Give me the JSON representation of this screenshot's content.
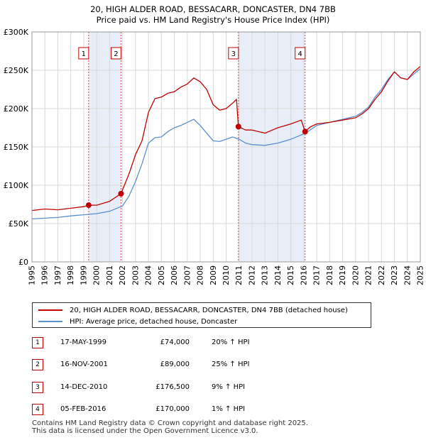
{
  "title_line1": "20, HIGH ALDER ROAD, BESSACARR, DONCASTER, DN4 7BB",
  "title_line2": "Price paid vs. HM Land Registry's House Price Index (HPI)",
  "legend": {
    "property_label": "20, HIGH ALDER ROAD, BESSACARR, DONCASTER, DN4 7BB (detached house)",
    "hpi_label": "HPI: Average price, detached house, Doncaster"
  },
  "transactions": [
    {
      "num": "1",
      "date": "17-MAY-1999",
      "price": "£74,000",
      "hpi_change": "20% ↑ HPI"
    },
    {
      "num": "2",
      "date": "16-NOV-2001",
      "price": "£89,000",
      "hpi_change": "25% ↑ HPI"
    },
    {
      "num": "3",
      "date": "14-DEC-2010",
      "price": "£176,500",
      "hpi_change": "9% ↑ HPI"
    },
    {
      "num": "4",
      "date": "05-FEB-2016",
      "price": "£170,000",
      "hpi_change": "1% ↑ HPI"
    }
  ],
  "footer": {
    "line1": "Contains HM Land Registry data © Crown copyright and database right 2025.",
    "line2": "This data is licensed under the Open Government Licence v3.0."
  },
  "colors": {
    "property": "#c00000",
    "hpi": "#5b8fd0",
    "shade": "#e8eef8",
    "grid": "#d9d9d9"
  },
  "chart_data": {
    "type": "line",
    "title": "20, HIGH ALDER ROAD, BESSACARR, DONCASTER, DN4 7BB",
    "subtitle": "Price paid vs. HM Land Registry's House Price Index (HPI)",
    "xlabel": "",
    "ylabel": "",
    "xlim": [
      1995.0,
      2025.0
    ],
    "ylim": [
      0,
      300000
    ],
    "y_ticks": [
      0,
      50000,
      100000,
      150000,
      200000,
      250000,
      300000
    ],
    "y_tick_labels": [
      "£0",
      "£50K",
      "£100K",
      "£150K",
      "£200K",
      "£250K",
      "£300K"
    ],
    "x_ticks": [
      1995,
      1996,
      1997,
      1998,
      1999,
      2000,
      2001,
      2002,
      2003,
      2004,
      2005,
      2006,
      2007,
      2008,
      2009,
      2010,
      2011,
      2012,
      2013,
      2014,
      2015,
      2016,
      2017,
      2018,
      2019,
      2020,
      2021,
      2022,
      2023,
      2024,
      2025
    ],
    "x_tick_labels": [
      "1995",
      "1996",
      "1997",
      "1998",
      "1999",
      "2000",
      "2001",
      "2002",
      "2003",
      "2004",
      "2005",
      "2006",
      "2007",
      "2008",
      "2009",
      "2010",
      "2011",
      "2012",
      "2013",
      "2014",
      "2015",
      "2016",
      "2017",
      "2018",
      "2019",
      "2020",
      "2021",
      "2022",
      "2023",
      "2024",
      "2025"
    ],
    "grid": true,
    "shaded_ranges": [
      [
        1999.38,
        2001.88
      ],
      [
        2010.95,
        2016.1
      ]
    ],
    "markers": [
      {
        "label": "1",
        "x": 1999.38,
        "y": 74000
      },
      {
        "label": "2",
        "x": 2001.88,
        "y": 89000
      },
      {
        "label": "3",
        "x": 2010.95,
        "y": 176500
      },
      {
        "label": "4",
        "x": 2016.1,
        "y": 170000
      }
    ],
    "series": [
      {
        "name": "20, HIGH ALDER ROAD, BESSACARR, DONCASTER, DN4 7BB (detached house)",
        "x": [
          1995.0,
          1996.0,
          1997.0,
          1998.0,
          1999.0,
          1999.38,
          2000.0,
          2001.0,
          2001.88,
          2002.5,
          2003.0,
          2003.5,
          2004.0,
          2004.5,
          2005.0,
          2005.5,
          2006.0,
          2006.5,
          2007.0,
          2007.5,
          2008.0,
          2008.5,
          2009.0,
          2009.5,
          2010.0,
          2010.5,
          2010.8,
          2010.95,
          2011.5,
          2012.0,
          2013.0,
          2014.0,
          2015.0,
          2015.8,
          2016.1,
          2016.5,
          2017.0,
          2018.0,
          2019.0,
          2020.0,
          2020.5,
          2021.0,
          2021.5,
          2022.0,
          2022.5,
          2023.0,
          2023.5,
          2024.0,
          2024.5,
          2025.0
        ],
        "y": [
          67000,
          69000,
          68000,
          70000,
          72000,
          74000,
          74000,
          79000,
          89000,
          115000,
          140000,
          158000,
          195000,
          213000,
          215000,
          220000,
          222000,
          228000,
          232000,
          240000,
          235000,
          225000,
          205000,
          198000,
          200000,
          207000,
          212000,
          176500,
          172000,
          172000,
          168000,
          175000,
          180000,
          185000,
          170000,
          176000,
          180000,
          182000,
          185000,
          188000,
          193000,
          200000,
          212000,
          222000,
          236000,
          248000,
          240000,
          238000,
          248000,
          255000
        ]
      },
      {
        "name": "HPI: Average price, detached house, Doncaster",
        "x": [
          1995.0,
          1996.0,
          1997.0,
          1998.0,
          1999.0,
          2000.0,
          2001.0,
          2002.0,
          2002.5,
          2003.0,
          2003.5,
          2004.0,
          2004.5,
          2005.0,
          2005.5,
          2006.0,
          2006.5,
          2007.0,
          2007.5,
          2008.0,
          2008.5,
          2009.0,
          2009.5,
          2010.0,
          2010.5,
          2011.0,
          2011.5,
          2012.0,
          2013.0,
          2014.0,
          2015.0,
          2016.0,
          2016.5,
          2017.0,
          2018.0,
          2019.0,
          2020.0,
          2020.5,
          2021.0,
          2021.5,
          2022.0,
          2022.5,
          2023.0,
          2023.5,
          2024.0,
          2024.5,
          2025.0
        ],
        "y": [
          56000,
          57000,
          58000,
          60000,
          61500,
          63000,
          66000,
          73000,
          86000,
          105000,
          128000,
          155000,
          162000,
          163000,
          170000,
          175000,
          178000,
          182000,
          186000,
          178000,
          168000,
          158000,
          157000,
          160000,
          163000,
          160000,
          155000,
          153000,
          152000,
          155000,
          160000,
          167000,
          172000,
          178000,
          182000,
          186000,
          190000,
          195000,
          202000,
          215000,
          225000,
          238000,
          248000,
          240000,
          238000,
          245000,
          252000
        ]
      }
    ]
  }
}
